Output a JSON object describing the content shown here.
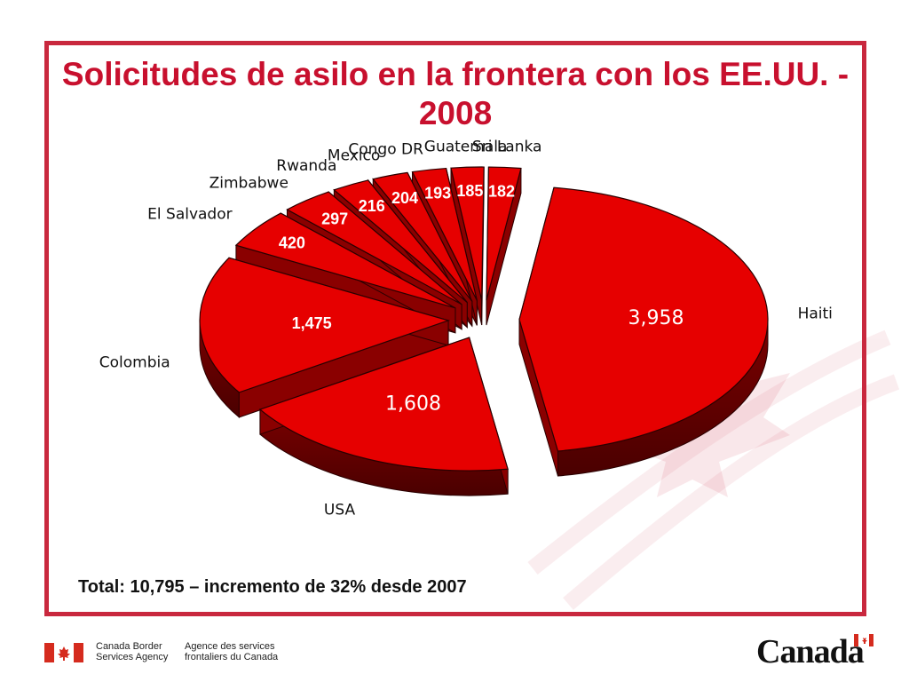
{
  "slide": {
    "title": "Solicitudes de asilo en la frontera con los EE.UU. - 2008",
    "note": "Total: 10,795 – incremento de 32% desde 2007"
  },
  "footer": {
    "agency_en": "Canada Border Services Agency",
    "agency_fr": "Agence des services frontaliers du Canada",
    "wordmark": "Canada"
  },
  "colors": {
    "accent": "#c8102e",
    "slice": "#e60000",
    "slice_dark": "#7a0000"
  },
  "chart_data": {
    "type": "pie",
    "title": "Solicitudes de asilo en la frontera con los EE.UU. - 2008",
    "categories": [
      "Haiti",
      "USA",
      "Colombia",
      "El Salvador",
      "Zimbabwe",
      "Rwanda",
      "Mexico",
      "Congo DR",
      "Guatemala",
      "Sri Lanka"
    ],
    "values": [
      3958,
      1608,
      1475,
      420,
      297,
      216,
      204,
      193,
      185,
      182
    ],
    "value_labels": [
      "3,958",
      "1,608",
      "1,475",
      "420",
      "297",
      "216",
      "204",
      "193",
      "185",
      "182"
    ],
    "style": "3d-exploded"
  }
}
